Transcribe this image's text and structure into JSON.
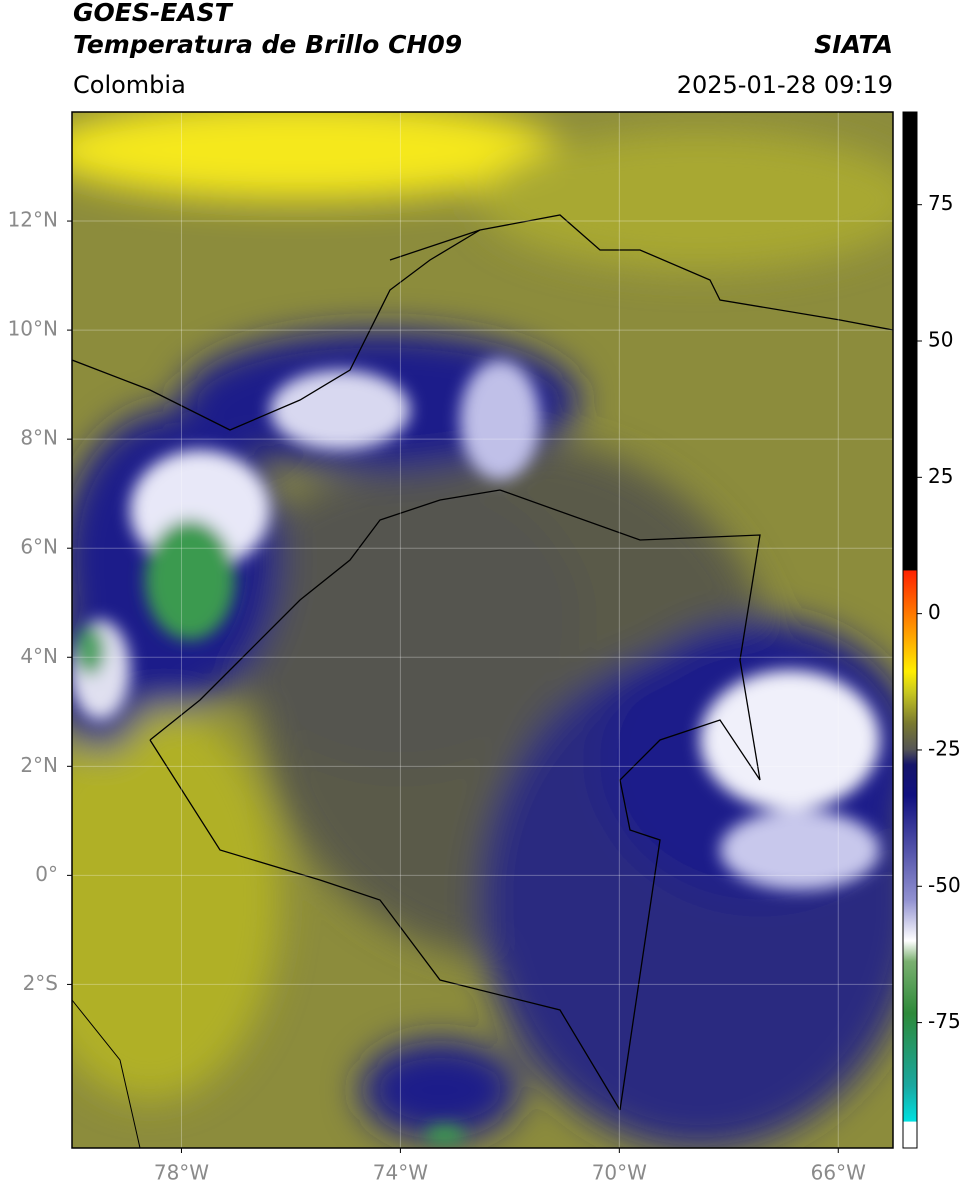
{
  "header": {
    "title": "GOES-EAST",
    "subtitle": "Temperatura de Brillo CH09",
    "source": "SIATA",
    "region": "Colombia",
    "datetime": "2025-01-28 09:19"
  },
  "map": {
    "lon_range": [
      -80,
      -65
    ],
    "lat_range": [
      -5,
      14
    ],
    "lat_ticks": [
      {
        "value": 12,
        "label": "12°N"
      },
      {
        "value": 10,
        "label": "10°N"
      },
      {
        "value": 8,
        "label": "8°N"
      },
      {
        "value": 6,
        "label": "6°N"
      },
      {
        "value": 4,
        "label": "4°N"
      },
      {
        "value": 2,
        "label": "2°N"
      },
      {
        "value": 0,
        "label": "0°"
      },
      {
        "value": -2,
        "label": "2°S"
      }
    ],
    "lon_ticks": [
      {
        "value": -78,
        "label": "78°W"
      },
      {
        "value": -74,
        "label": "74°W"
      },
      {
        "value": -70,
        "label": "70°W"
      },
      {
        "value": -66,
        "label": "66°W"
      }
    ]
  },
  "colorbar": {
    "range": [
      -98,
      92
    ],
    "ticks": [
      75,
      50,
      25,
      0,
      -25,
      -50,
      -75
    ]
  }
}
